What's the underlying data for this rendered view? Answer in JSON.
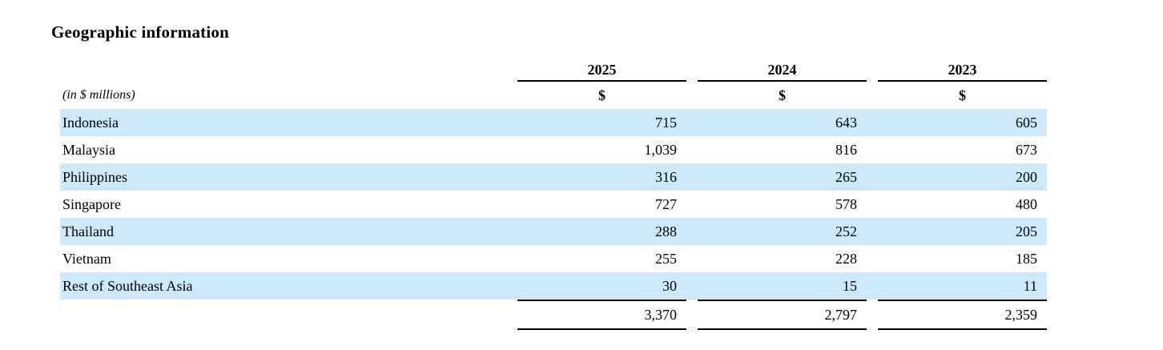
{
  "title": "Geographic information",
  "table": {
    "unit_label": "(in $ millions)",
    "currency_symbol": "$",
    "years": [
      "2025",
      "2024",
      "2023"
    ],
    "rows": [
      {
        "label": "Indonesia",
        "values": [
          "715",
          "643",
          "605"
        ]
      },
      {
        "label": "Malaysia",
        "values": [
          "1,039",
          "816",
          "673"
        ]
      },
      {
        "label": "Philippines",
        "values": [
          "316",
          "265",
          "200"
        ]
      },
      {
        "label": "Singapore",
        "values": [
          "727",
          "578",
          "480"
        ]
      },
      {
        "label": "Thailand",
        "values": [
          "288",
          "252",
          "205"
        ]
      },
      {
        "label": "Vietnam",
        "values": [
          "255",
          "228",
          "185"
        ]
      },
      {
        "label": "Rest of Southeast Asia",
        "values": [
          "30",
          "15",
          "11"
        ]
      }
    ],
    "total": {
      "values": [
        "3,370",
        "2,797",
        "2,359"
      ]
    }
  },
  "colors": {
    "row_highlight": "#cde9fa",
    "rule_line": "#000000",
    "text": "#000000",
    "background": "#ffffff"
  }
}
